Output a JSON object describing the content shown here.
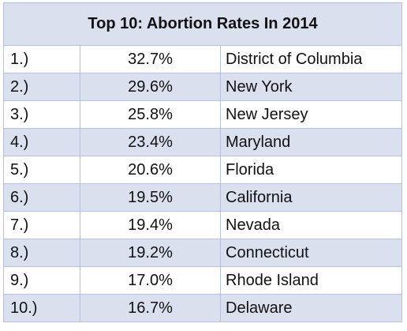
{
  "table": {
    "title": "Top 10: Abortion Rates In 2014",
    "rows": [
      {
        "rank": "1.)",
        "rate": "32.7%",
        "place": "District of Columbia"
      },
      {
        "rank": "2.)",
        "rate": "29.6%",
        "place": "New York"
      },
      {
        "rank": "3.)",
        "rate": "25.8%",
        "place": "New Jersey"
      },
      {
        "rank": "4.)",
        "rate": "23.4%",
        "place": "Maryland"
      },
      {
        "rank": "5.)",
        "rate": "20.6%",
        "place": "Florida"
      },
      {
        "rank": "6.)",
        "rate": "19.5%",
        "place": "California"
      },
      {
        "rank": "7.)",
        "rate": "19.4%",
        "place": "Nevada"
      },
      {
        "rank": "8.)",
        "rate": "19.2%",
        "place": "Connecticut"
      },
      {
        "rank": "9.)",
        "rate": "17.0%",
        "place": "Rhode Island"
      },
      {
        "rank": "10.)",
        "rate": "16.7%",
        "place": "Delaware"
      }
    ]
  },
  "colors": {
    "header_fill": "#dbe0ef",
    "band_fill": "#dbe0ef",
    "border": "#b4c0dc"
  }
}
